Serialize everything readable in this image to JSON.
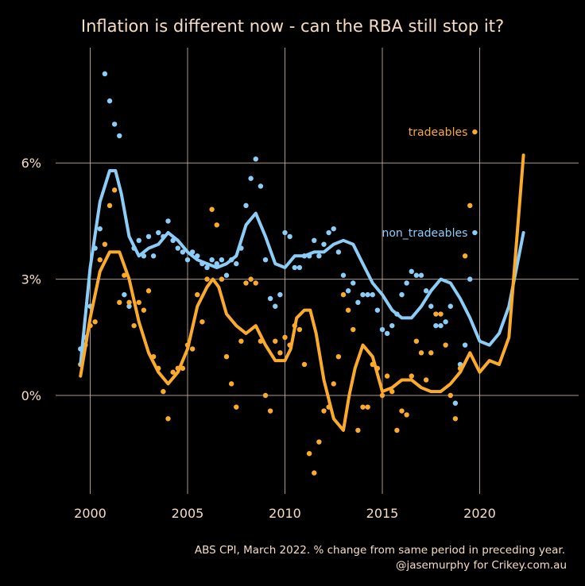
{
  "chart_data": {
    "type": "scatter",
    "title": "Inflation is different now - can the RBA still stop it?",
    "caption_lines": [
      "ABS CPI, March 2022. % change from same period in preceding year.",
      "@jasemurphy for Crikey.com.au"
    ],
    "xlabel": "",
    "ylabel": "",
    "xlim": [
      1998.5,
      2024.6
    ],
    "ylim": [
      -2.6,
      8.9
    ],
    "x_ticks": [
      2000,
      2005,
      2010,
      2015,
      2020
    ],
    "x_tick_labels": [
      "2000",
      "2005",
      "2010",
      "2015",
      "2020"
    ],
    "y_ticks": [
      0,
      3,
      6
    ],
    "y_tick_labels": [
      "0%",
      "3%",
      "6%"
    ],
    "grid": true,
    "legend": "direct labels at right end of series",
    "x_start": 1999.5,
    "x_step": 0.25,
    "series": [
      {
        "name": "non_tradeables",
        "color": "#8ccdf8",
        "points": [
          1.2,
          1.5,
          2.3,
          3.8,
          4.3,
          8.3,
          7.6,
          7.0,
          6.7,
          2.6,
          2.3,
          3.8,
          4.0,
          3.6,
          4.1,
          3.6,
          4.2,
          4.1,
          4.5,
          4.0,
          3.8,
          3.7,
          3.5,
          3.7,
          3.6,
          3.4,
          3.3,
          3.5,
          3.4,
          3.5,
          3.1,
          3.5,
          3.4,
          3.8,
          4.9,
          5.6,
          6.1,
          5.4,
          3.5,
          2.5,
          2.3,
          2.6,
          4.2,
          4.1,
          3.3,
          3.3,
          3.6,
          3.6,
          4.0,
          3.6,
          3.9,
          4.2,
          4.3,
          3.7,
          3.1,
          2.7,
          2.9,
          2.4,
          2.6,
          2.6,
          2.6,
          2.2,
          1.7,
          1.6,
          1.8,
          2.1,
          2.6,
          2.9,
          3.2,
          3.1,
          3.1,
          2.7,
          2.3,
          1.8,
          1.8,
          1.9,
          2.3,
          -0.2,
          0.8,
          1.3,
          3.0,
          4.2
        ]
      },
      {
        "name": "tradeables",
        "color": "#fbaa2a",
        "points": [
          0.8,
          1.3,
          1.8,
          1.9,
          3.5,
          3.9,
          4.9,
          5.3,
          2.4,
          3.1,
          2.4,
          1.8,
          2.4,
          2.2,
          2.7,
          1.0,
          0.7,
          0.1,
          -0.6,
          0.6,
          0.7,
          0.7,
          1.3,
          1.2,
          2.6,
          1.9,
          3.0,
          4.8,
          4.4,
          3.0,
          1.0,
          0.3,
          -0.3,
          1.4,
          2.9,
          3.0,
          2.9,
          1.4,
          0.0,
          -0.4,
          1.4,
          1.1,
          1.5,
          1.3,
          1.8,
          1.7,
          0.8,
          -1.5,
          -2.0,
          -1.2,
          -0.4,
          -0.3,
          0.3,
          1.0,
          2.6,
          2.2,
          1.7,
          -0.9,
          -0.3,
          -0.3,
          0.8,
          0.7,
          0.0,
          0.5,
          0.1,
          -0.9,
          -0.4,
          -0.5,
          0.5,
          1.4,
          1.1,
          0.4,
          1.1,
          2.1,
          2.1,
          1.3,
          0.0,
          -0.6,
          0.7,
          3.6,
          4.9,
          6.8
        ]
      }
    ],
    "trend_series": [
      {
        "name": "non_tradeables_trend",
        "x": [
          1999.5,
          2000.0,
          2000.5,
          2001.0,
          2001.3,
          2001.6,
          2002.0,
          2002.5,
          2003.0,
          2003.5,
          2004.0,
          2004.5,
          2005.0,
          2005.5,
          2006.0,
          2006.5,
          2007.0,
          2007.5,
          2008.0,
          2008.5,
          2009.0,
          2009.5,
          2010.0,
          2010.5,
          2011.0,
          2011.5,
          2012.0,
          2012.5,
          2013.0,
          2013.5,
          2014.0,
          2014.5,
          2015.0,
          2015.5,
          2016.0,
          2016.5,
          2017.0,
          2017.5,
          2018.0,
          2018.5,
          2019.0,
          2019.5,
          2020.0,
          2020.5,
          2021.0,
          2021.5,
          2022.25
        ],
        "values": [
          0.8,
          3.3,
          5.0,
          5.8,
          5.8,
          5.2,
          4.1,
          3.6,
          3.8,
          3.9,
          4.2,
          4.0,
          3.7,
          3.5,
          3.4,
          3.3,
          3.4,
          3.6,
          4.4,
          4.7,
          4.1,
          3.4,
          3.3,
          3.6,
          3.6,
          3.7,
          3.7,
          3.9,
          4.0,
          3.9,
          3.4,
          2.9,
          2.6,
          2.2,
          2.0,
          2.0,
          2.3,
          2.7,
          3.0,
          2.9,
          2.5,
          2.0,
          1.4,
          1.3,
          1.6,
          2.3,
          4.2
        ]
      },
      {
        "name": "tradeables_trend",
        "x": [
          1999.5,
          2000.0,
          2000.5,
          2001.0,
          2001.5,
          2002.0,
          2002.5,
          2003.0,
          2003.5,
          2004.0,
          2004.5,
          2005.0,
          2005.5,
          2006.0,
          2006.3,
          2006.6,
          2007.0,
          2007.5,
          2008.0,
          2008.5,
          2009.0,
          2009.5,
          2010.0,
          2010.3,
          2010.6,
          2011.0,
          2011.3,
          2011.6,
          2012.0,
          2012.5,
          2013.0,
          2013.3,
          2013.6,
          2014.0,
          2014.5,
          2015.0,
          2015.5,
          2016.0,
          2016.5,
          2017.0,
          2017.5,
          2018.0,
          2018.5,
          2019.0,
          2019.5,
          2020.0,
          2020.5,
          2021.0,
          2021.5,
          2022.25
        ],
        "values": [
          0.5,
          2.0,
          3.2,
          3.7,
          3.7,
          3.0,
          1.9,
          1.1,
          0.6,
          0.3,
          0.6,
          1.2,
          2.3,
          2.8,
          3.0,
          2.8,
          2.1,
          1.8,
          1.6,
          1.8,
          1.3,
          0.9,
          0.9,
          1.2,
          2.0,
          2.2,
          2.2,
          1.6,
          0.4,
          -0.6,
          -0.9,
          0.0,
          0.7,
          1.3,
          1.0,
          0.1,
          0.2,
          0.4,
          0.4,
          0.2,
          0.1,
          0.1,
          0.3,
          0.6,
          1.1,
          0.6,
          0.9,
          0.8,
          1.5,
          6.2
        ]
      }
    ]
  }
}
